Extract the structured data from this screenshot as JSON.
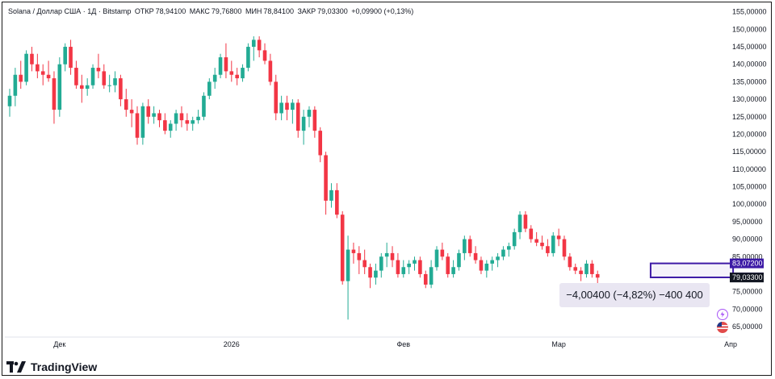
{
  "header": {
    "symbol": "Solana / Доллар США · 1Д · Bitstamp",
    "open_label": "ОТКР",
    "open_value": "78,94100",
    "high_label": "МАКС",
    "high_value": "79,76800",
    "low_label": "МИН",
    "low_value": "78,84100",
    "close_label": "ЗАКР",
    "close_value": "79,03300",
    "change": "+0,09900 (+0,13%)"
  },
  "measure_label": "−4,00400 (−4,82%) −400 400",
  "brand": "TradingView",
  "colors": {
    "up": "#22ab94",
    "down": "#f23645",
    "range_box": "#3d1aa6",
    "last_tag": "#131722",
    "measure_bg": "#e9e6f2"
  },
  "icons": [
    "lightning-icon",
    "flag-icon"
  ],
  "chart_data": {
    "type": "candlestick",
    "ylim": [
      62.0,
      157.0
    ],
    "y_ticks": [
      {
        "v": 155,
        "label": "155,00000"
      },
      {
        "v": 150,
        "label": "150,00000"
      },
      {
        "v": 145,
        "label": "145,00000"
      },
      {
        "v": 140,
        "label": "140,00000"
      },
      {
        "v": 135,
        "label": "135,00000"
      },
      {
        "v": 130,
        "label": "130,00000"
      },
      {
        "v": 125,
        "label": "125,00000"
      },
      {
        "v": 120,
        "label": "120,00000"
      },
      {
        "v": 115,
        "label": "115,00000"
      },
      {
        "v": 110,
        "label": "110,00000"
      },
      {
        "v": 105,
        "label": "105,00000"
      },
      {
        "v": 100,
        "label": "100,00000"
      },
      {
        "v": 95,
        "label": "95,00000"
      },
      {
        "v": 90,
        "label": "90,00000"
      },
      {
        "v": 85,
        "label": "85,00000"
      },
      {
        "v": 75,
        "label": "75,00000"
      },
      {
        "v": 70,
        "label": "70,00000"
      },
      {
        "v": 65,
        "label": "65,00000"
      }
    ],
    "x_ticks": [
      {
        "i": 9,
        "label": "Дек"
      },
      {
        "i": 40,
        "label": "2026"
      },
      {
        "i": 71,
        "label": "Фев"
      },
      {
        "i": 99,
        "label": "Мар"
      },
      {
        "i": 130,
        "label": "Апр"
      }
    ],
    "price_tags": [
      {
        "v": 83.072,
        "label": "83,07200",
        "kind": "range"
      },
      {
        "v": 79.068,
        "label": "79,06800",
        "kind": "range"
      },
      {
        "v": 79.033,
        "label": "79,03300",
        "kind": "last"
      }
    ],
    "range_box": {
      "i_start": 116,
      "i_end": 130,
      "top": 83.072,
      "bottom": 79.068
    },
    "ohlc": [
      [
        128,
        133,
        125,
        131
      ],
      [
        131,
        139,
        128,
        137
      ],
      [
        137,
        141,
        133,
        135
      ],
      [
        135,
        144,
        134,
        143
      ],
      [
        143,
        145,
        138,
        140
      ],
      [
        140,
        143,
        136,
        138
      ],
      [
        138,
        140,
        134,
        137
      ],
      [
        137,
        141,
        135,
        136
      ],
      [
        136,
        138,
        123,
        127
      ],
      [
        127,
        142,
        125,
        140
      ],
      [
        140,
        146,
        138,
        145
      ],
      [
        145,
        147,
        137,
        139
      ],
      [
        139,
        141,
        133,
        134
      ],
      [
        134,
        137,
        129,
        133
      ],
      [
        133,
        136,
        131,
        134
      ],
      [
        134,
        140,
        133,
        139
      ],
      [
        139,
        143,
        136,
        138
      ],
      [
        138,
        140,
        133,
        134
      ],
      [
        134,
        137,
        132,
        134
      ],
      [
        134,
        138,
        132,
        136
      ],
      [
        136,
        137,
        128,
        130
      ],
      [
        130,
        133,
        125,
        127
      ],
      [
        127,
        130,
        122,
        126
      ],
      [
        126,
        128,
        117,
        119
      ],
      [
        119,
        129,
        117,
        128
      ],
      [
        128,
        130,
        123,
        125
      ],
      [
        125,
        128,
        123,
        126
      ],
      [
        126,
        127,
        122,
        124
      ],
      [
        124,
        126,
        120,
        121
      ],
      [
        121,
        124,
        119,
        123
      ],
      [
        123,
        127,
        121,
        126
      ],
      [
        126,
        128,
        122,
        124
      ],
      [
        124,
        126,
        121,
        123
      ],
      [
        123,
        125,
        121,
        124
      ],
      [
        124,
        127,
        123,
        125
      ],
      [
        125,
        132,
        124,
        131
      ],
      [
        131,
        136,
        130,
        135
      ],
      [
        135,
        139,
        133,
        137
      ],
      [
        137,
        143,
        136,
        142
      ],
      [
        142,
        146,
        136,
        138
      ],
      [
        138,
        141,
        135,
        137
      ],
      [
        137,
        139,
        134,
        136
      ],
      [
        136,
        140,
        135,
        139
      ],
      [
        139,
        146,
        138,
        145
      ],
      [
        145,
        148,
        141,
        147
      ],
      [
        147,
        148,
        142,
        144
      ],
      [
        144,
        146,
        140,
        141
      ],
      [
        141,
        143,
        134,
        135
      ],
      [
        135,
        137,
        124,
        126
      ],
      [
        126,
        131,
        124,
        129
      ],
      [
        129,
        131,
        124,
        127
      ],
      [
        127,
        130,
        123,
        129
      ],
      [
        129,
        130,
        119,
        121
      ],
      [
        121,
        127,
        117,
        125
      ],
      [
        125,
        128,
        122,
        127
      ],
      [
        127,
        128,
        119,
        121
      ],
      [
        121,
        122,
        112,
        114
      ],
      [
        114,
        115,
        97,
        101
      ],
      [
        101,
        106,
        99,
        104
      ],
      [
        104,
        106,
        96,
        97
      ],
      [
        97,
        98,
        77,
        78
      ],
      [
        78,
        91,
        67,
        87
      ],
      [
        87,
        89,
        83,
        86
      ],
      [
        86,
        88,
        80,
        84
      ],
      [
        84,
        87,
        80,
        82
      ],
      [
        82,
        83,
        76,
        79
      ],
      [
        79,
        83,
        77,
        81
      ],
      [
        81,
        86,
        79,
        85
      ],
      [
        85,
        89,
        82,
        86
      ],
      [
        86,
        88,
        82,
        84
      ],
      [
        84,
        86,
        79,
        80
      ],
      [
        80,
        84,
        79,
        82
      ],
      [
        82,
        84,
        80,
        83
      ],
      [
        83,
        85,
        81,
        84
      ],
      [
        84,
        85,
        79,
        80
      ],
      [
        80,
        81,
        76,
        77
      ],
      [
        77,
        84,
        76,
        82
      ],
      [
        82,
        88,
        81,
        87
      ],
      [
        87,
        89,
        84,
        85
      ],
      [
        85,
        86,
        79,
        80
      ],
      [
        80,
        84,
        79,
        82
      ],
      [
        82,
        87,
        81,
        86
      ],
      [
        86,
        91,
        84,
        90
      ],
      [
        90,
        91,
        85,
        86
      ],
      [
        86,
        88,
        83,
        84
      ],
      [
        84,
        85,
        80,
        81
      ],
      [
        81,
        84,
        79,
        83
      ],
      [
        83,
        85,
        81,
        84
      ],
      [
        84,
        86,
        82,
        85
      ],
      [
        85,
        88,
        84,
        87
      ],
      [
        87,
        89,
        85,
        88
      ],
      [
        88,
        93,
        87,
        92
      ],
      [
        92,
        98,
        90,
        97
      ],
      [
        97,
        98,
        92,
        93
      ],
      [
        93,
        94,
        89,
        90
      ],
      [
        90,
        92,
        88,
        89
      ],
      [
        89,
        91,
        87,
        88
      ],
      [
        88,
        90,
        85,
        86
      ],
      [
        86,
        92,
        85,
        91
      ],
      [
        91,
        93,
        88,
        90
      ],
      [
        90,
        91,
        84,
        85
      ],
      [
        85,
        86,
        81,
        82
      ],
      [
        82,
        83,
        80,
        81
      ],
      [
        81,
        82,
        78,
        80
      ],
      [
        80,
        84,
        79,
        83
      ],
      [
        83,
        84,
        79,
        80
      ],
      [
        80,
        81,
        77,
        79
      ]
    ]
  }
}
